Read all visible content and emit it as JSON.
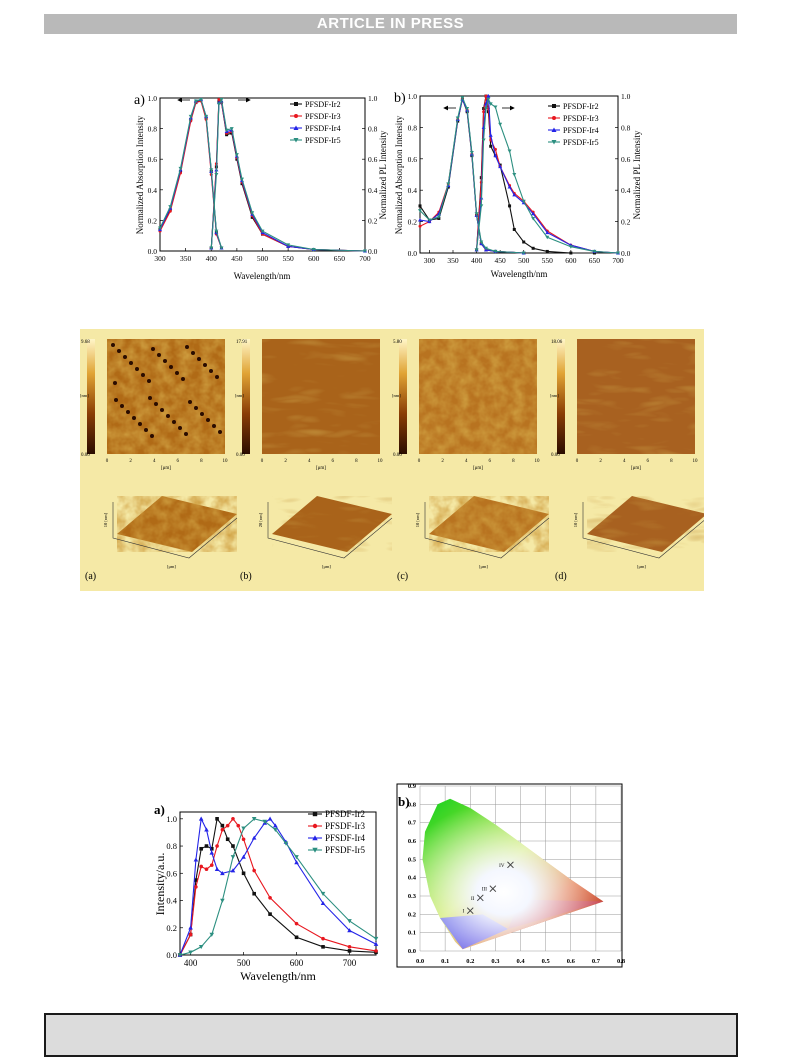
{
  "header": {
    "banner": "ARTICLE IN PRESS"
  },
  "figure1": {
    "panel_a": {
      "label": "a)",
      "xlabel": "Wavelength/nm",
      "ylabel_left": "Normalized Absorption Intensity",
      "ylabel_right": "Normalized PL Intensity",
      "xticks": [
        "300",
        "350",
        "400",
        "450",
        "500",
        "550",
        "600",
        "650",
        "700"
      ],
      "yticks": [
        "0.0",
        "0.2",
        "0.4",
        "0.6",
        "0.8",
        "1.0"
      ],
      "legend": [
        "PFSDF-Ir2",
        "PFSDF-Ir3",
        "PFSDF-Ir4",
        "PFSDF-Ir5"
      ]
    },
    "panel_b": {
      "label": "b)",
      "xlabel": "Wavelength/nm",
      "ylabel_left": "Normalized Absorption Intensity",
      "ylabel_right": "Normalized PL Intensity",
      "xticks": [
        "300",
        "350",
        "400",
        "450",
        "500",
        "550",
        "600",
        "650",
        "700"
      ],
      "yticks": [
        "0.0",
        "0.2",
        "0.4",
        "0.6",
        "0.8",
        "1.0"
      ],
      "legend": [
        "PFSDF-Ir2",
        "PFSDF-Ir3",
        "PFSDF-Ir4",
        "PFSDF-Ir5"
      ]
    }
  },
  "figure2": {
    "maps": [
      {
        "zmax": "9.68",
        "zmin": "0.00",
        "zunit": "[nm]"
      },
      {
        "zmax": "17.91",
        "zmin": "0.00",
        "zunit": "[nm]"
      },
      {
        "zmax": "5.80",
        "zmin": "0.00",
        "zunit": "[nm]"
      },
      {
        "zmax": "18.06",
        "zmin": "0.00",
        "zunit": "[nm]"
      }
    ],
    "xunit": "[μm]",
    "xticks": [
      "0",
      "2",
      "4",
      "6",
      "8",
      "10"
    ],
    "panel_labels": [
      "(a)",
      "(b)",
      "(c)",
      "(d)"
    ],
    "axis3d_z": [
      "10 [nm]",
      "20 [nm]",
      "10 [nm]",
      "10 [nm]"
    ]
  },
  "figure3": {
    "panel_a": {
      "label": "a)",
      "xlabel": "Wavelength/nm",
      "ylabel": "Intensity/a.u.",
      "xticks": [
        "400",
        "500",
        "600",
        "700"
      ],
      "yticks": [
        "0.0",
        "0.2",
        "0.4",
        "0.6",
        "0.8",
        "1.0"
      ],
      "legend": [
        "PFSDF-Ir2",
        "PFSDF-Ir3",
        "PFSDF-Ir4",
        "PFSDF-Ir5"
      ]
    },
    "panel_b": {
      "label": "b)",
      "xticks": [
        "0.0",
        "0.1",
        "0.2",
        "0.3",
        "0.4",
        "0.5",
        "0.6",
        "0.7",
        "0.8"
      ],
      "yticks": [
        "0.0",
        "0.1",
        "0.2",
        "0.3",
        "0.4",
        "0.5",
        "0.6",
        "0.7",
        "0.8",
        "0.9"
      ],
      "points": [
        "I",
        "II",
        "III",
        "IV"
      ]
    }
  },
  "colors": {
    "ir2": "#111111",
    "ir3": "#e8171f",
    "ir4": "#2424e8",
    "ir5": "#2c8f80"
  },
  "chart_data": [
    {
      "type": "line",
      "title": "",
      "xlabel": "Wavelength/nm",
      "ylabel": "Normalized Absorption Intensity / Normalized PL Intensity",
      "xlim": [
        300,
        700
      ],
      "ylim": [
        0,
        1.0
      ],
      "series": [
        {
          "name": "PFSDF-Ir2",
          "abs": {
            "x": [
              300,
              320,
              340,
              360,
              370,
              380,
              390,
              400,
              410,
              420
            ],
            "y": [
              0.14,
              0.27,
              0.52,
              0.86,
              0.97,
              0.99,
              0.87,
              0.52,
              0.12,
              0.02
            ]
          },
          "pl": {
            "x": [
              400,
              410,
              415,
              420,
              430,
              440,
              450,
              460,
              480,
              500,
              550,
              600,
              700
            ],
            "y": [
              0.02,
              0.55,
              0.98,
              0.97,
              0.76,
              0.77,
              0.6,
              0.44,
              0.22,
              0.11,
              0.03,
              0.01,
              0.0
            ]
          }
        },
        {
          "name": "PFSDF-Ir3",
          "abs": {
            "x": [
              300,
              320,
              340,
              360,
              370,
              380,
              390,
              400,
              410,
              420
            ],
            "y": [
              0.13,
              0.26,
              0.51,
              0.85,
              0.97,
              0.98,
              0.86,
              0.5,
              0.11,
              0.02
            ]
          },
          "pl": {
            "x": [
              400,
              410,
              415,
              420,
              430,
              440,
              450,
              460,
              480,
              500,
              550,
              600,
              700
            ],
            "y": [
              0.02,
              0.57,
              0.99,
              0.97,
              0.77,
              0.78,
              0.61,
              0.45,
              0.23,
              0.11,
              0.03,
              0.01,
              0.0
            ]
          }
        },
        {
          "name": "PFSDF-Ir4",
          "abs": {
            "x": [
              300,
              320,
              340,
              360,
              370,
              380,
              390,
              400,
              410,
              420
            ],
            "y": [
              0.14,
              0.28,
              0.53,
              0.87,
              0.98,
              0.99,
              0.88,
              0.52,
              0.12,
              0.02
            ]
          },
          "pl": {
            "x": [
              400,
              410,
              415,
              420,
              430,
              440,
              450,
              460,
              480,
              500,
              550,
              600,
              700
            ],
            "y": [
              0.02,
              0.53,
              0.97,
              0.98,
              0.78,
              0.79,
              0.62,
              0.46,
              0.24,
              0.12,
              0.03,
              0.01,
              0.0
            ]
          }
        },
        {
          "name": "PFSDF-Ir5",
          "abs": {
            "x": [
              300,
              320,
              340,
              360,
              370,
              380,
              390,
              400,
              410,
              420
            ],
            "y": [
              0.15,
              0.29,
              0.54,
              0.88,
              0.98,
              0.99,
              0.88,
              0.53,
              0.13,
              0.02
            ]
          },
          "pl": {
            "x": [
              400,
              410,
              415,
              420,
              430,
              440,
              450,
              460,
              480,
              500,
              550,
              600,
              700
            ],
            "y": [
              0.02,
              0.5,
              0.96,
              0.99,
              0.79,
              0.8,
              0.63,
              0.47,
              0.25,
              0.13,
              0.04,
              0.01,
              0.0
            ]
          }
        }
      ]
    },
    {
      "type": "line",
      "title": "",
      "xlabel": "Wavelength/nm",
      "ylabel": "Normalized Absorption Intensity / Normalized PL Intensity",
      "xlim": [
        280,
        700
      ],
      "ylim": [
        0,
        1.0
      ],
      "series": [
        {
          "name": "PFSDF-Ir2",
          "abs": {
            "x": [
              280,
              300,
              320,
              340,
              360,
              370,
              380,
              390,
              400,
              410,
              420,
              440,
              500
            ],
            "y": [
              0.3,
              0.21,
              0.22,
              0.42,
              0.84,
              0.98,
              0.9,
              0.62,
              0.24,
              0.06,
              0.02,
              0.01,
              0.0
            ]
          },
          "pl": {
            "x": [
              400,
              410,
              415,
              420,
              425,
              430,
              440,
              450,
              470,
              480,
              500,
              520,
              550,
              600,
              650,
              700
            ],
            "y": [
              0.02,
              0.48,
              0.92,
              1.0,
              0.9,
              0.68,
              0.62,
              0.56,
              0.3,
              0.15,
              0.07,
              0.03,
              0.01,
              0.0,
              0.0,
              0.0
            ]
          }
        },
        {
          "name": "PFSDF-Ir3",
          "abs": {
            "x": [
              280,
              300,
              320,
              340,
              360,
              370,
              380,
              390,
              400,
              410,
              420,
              440,
              500
            ],
            "y": [
              0.17,
              0.2,
              0.26,
              0.44,
              0.85,
              0.98,
              0.91,
              0.63,
              0.24,
              0.06,
              0.02,
              0.01,
              0.0
            ]
          },
          "pl": {
            "x": [
              400,
              410,
              415,
              420,
              425,
              430,
              440,
              450,
              470,
              480,
              500,
              520,
              550,
              600,
              650,
              700
            ],
            "y": [
              0.02,
              0.45,
              0.9,
              1.0,
              0.92,
              0.72,
              0.66,
              0.55,
              0.43,
              0.38,
              0.33,
              0.26,
              0.14,
              0.05,
              0.01,
              0.0
            ]
          }
        },
        {
          "name": "PFSDF-Ir4",
          "abs": {
            "x": [
              280,
              300,
              320,
              340,
              360,
              370,
              380,
              390,
              400,
              410,
              420,
              440,
              500
            ],
            "y": [
              0.21,
              0.2,
              0.25,
              0.43,
              0.85,
              0.98,
              0.91,
              0.63,
              0.24,
              0.06,
              0.02,
              0.01,
              0.0
            ]
          },
          "pl": {
            "x": [
              400,
              410,
              415,
              420,
              425,
              430,
              440,
              450,
              470,
              480,
              500,
              520,
              550,
              600,
              650,
              700
            ],
            "y": [
              0.02,
              0.35,
              0.8,
              0.95,
              1.0,
              0.75,
              0.62,
              0.55,
              0.42,
              0.37,
              0.32,
              0.25,
              0.13,
              0.05,
              0.01,
              0.0
            ]
          }
        },
        {
          "name": "PFSDF-Ir5",
          "abs": {
            "x": [
              280,
              300,
              320,
              340,
              360,
              370,
              380,
              390,
              400,
              410,
              420,
              440,
              500
            ],
            "y": [
              0.27,
              0.21,
              0.23,
              0.44,
              0.86,
              0.99,
              0.92,
              0.64,
              0.25,
              0.07,
              0.03,
              0.01,
              0.0
            ]
          },
          "pl": {
            "x": [
              400,
              410,
              415,
              420,
              425,
              430,
              440,
              450,
              470,
              480,
              500,
              520,
              550,
              600,
              650,
              700
            ],
            "y": [
              0.02,
              0.3,
              0.72,
              0.92,
              0.98,
              0.95,
              0.93,
              0.82,
              0.65,
              0.5,
              0.33,
              0.22,
              0.1,
              0.04,
              0.01,
              0.0
            ]
          }
        }
      ]
    },
    {
      "type": "line",
      "title": "",
      "xlabel": "Wavelength/nm",
      "ylabel": "Intensity/a.u.",
      "xlim": [
        380,
        750
      ],
      "ylim": [
        0,
        1.05
      ],
      "series": [
        {
          "name": "PFSDF-Ir2",
          "x": [
            380,
            400,
            410,
            420,
            430,
            440,
            450,
            460,
            470,
            480,
            500,
            520,
            550,
            600,
            650,
            700,
            750
          ],
          "y": [
            0.0,
            0.15,
            0.55,
            0.78,
            0.8,
            0.78,
            1.0,
            0.95,
            0.85,
            0.8,
            0.6,
            0.45,
            0.3,
            0.13,
            0.06,
            0.03,
            0.02
          ]
        },
        {
          "name": "PFSDF-Ir3",
          "x": [
            380,
            400,
            410,
            420,
            430,
            440,
            450,
            460,
            470,
            480,
            490,
            500,
            520,
            550,
            600,
            650,
            700,
            750
          ],
          "y": [
            0.0,
            0.15,
            0.5,
            0.65,
            0.63,
            0.66,
            0.8,
            0.92,
            0.95,
            1.0,
            0.95,
            0.85,
            0.62,
            0.42,
            0.23,
            0.12,
            0.06,
            0.03
          ]
        },
        {
          "name": "PFSDF-Ir4",
          "x": [
            380,
            400,
            410,
            420,
            430,
            440,
            450,
            460,
            480,
            500,
            520,
            540,
            550,
            560,
            580,
            600,
            650,
            700,
            750
          ],
          "y": [
            0.0,
            0.2,
            0.7,
            1.0,
            0.92,
            0.75,
            0.63,
            0.6,
            0.62,
            0.72,
            0.86,
            0.97,
            1.0,
            0.95,
            0.83,
            0.68,
            0.38,
            0.18,
            0.08
          ]
        },
        {
          "name": "PFSDF-Ir5",
          "x": [
            380,
            400,
            420,
            440,
            460,
            480,
            500,
            520,
            540,
            560,
            580,
            600,
            650,
            700,
            750
          ],
          "y": [
            0.0,
            0.02,
            0.06,
            0.15,
            0.4,
            0.72,
            0.93,
            1.0,
            0.98,
            0.92,
            0.82,
            0.72,
            0.45,
            0.25,
            0.12
          ]
        }
      ]
    },
    {
      "type": "scatter",
      "title": "",
      "xlabel": "",
      "ylabel": "",
      "xlim": [
        0,
        0.8
      ],
      "ylim": [
        0,
        0.9
      ],
      "series": [
        {
          "name": "",
          "labels": [
            "I",
            "II",
            "III",
            "IV"
          ],
          "x": [
            0.2,
            0.24,
            0.29,
            0.36
          ],
          "y": [
            0.22,
            0.29,
            0.34,
            0.47
          ]
        }
      ]
    }
  ]
}
